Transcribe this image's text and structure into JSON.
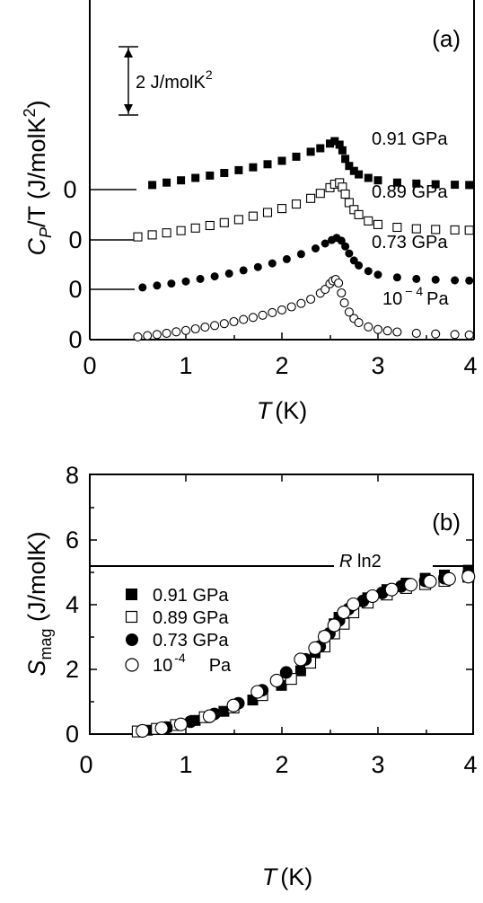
{
  "chart_data": [
    {
      "panel": "(a)",
      "type": "scatter",
      "xlabel": "T (K)",
      "xlabel_italic": "T",
      "xlabel_unit": "(K)",
      "ylabel_main": "C",
      "ylabel_sub": "P",
      "ylabel_rest": "/T (J/molK",
      "ylabel_sup": "2",
      "ylabel_close": ")",
      "xlim": [
        0,
        4
      ],
      "x_ticks": [
        "0",
        "1",
        "2",
        "3",
        "4"
      ],
      "offset_zero_labels": [
        "0",
        "0",
        "0",
        "0"
      ],
      "scale_bar": {
        "label": "2 J/molK",
        "label_sup": "2",
        "value": 2
      },
      "series": [
        {
          "name": "0.91 GPa",
          "label_text": "0.91 GPa",
          "marker": "filled-square",
          "zero_offset": 6,
          "x": [
            0.65,
            0.8,
            0.95,
            1.1,
            1.25,
            1.4,
            1.55,
            1.7,
            1.85,
            2.0,
            2.15,
            2.3,
            2.4,
            2.5,
            2.55,
            2.6,
            2.63,
            2.66,
            2.7,
            2.75,
            2.8,
            2.9,
            3.0,
            3.2,
            3.4,
            3.6,
            3.8,
            3.95
          ],
          "y": [
            0.45,
            0.62,
            0.78,
            0.95,
            1.12,
            1.3,
            1.5,
            1.7,
            1.92,
            2.16,
            2.45,
            2.8,
            3.05,
            3.38,
            3.55,
            3.3,
            2.9,
            2.3,
            1.8,
            1.45,
            1.2,
            0.95,
            0.78,
            0.62,
            0.55,
            0.5,
            0.47,
            0.45
          ]
        },
        {
          "name": "0.89 GPa",
          "label_text": "0.89 GPa",
          "marker": "open-square",
          "zero_offset": 4,
          "x": [
            0.5,
            0.65,
            0.8,
            0.95,
            1.1,
            1.25,
            1.4,
            1.55,
            1.7,
            1.85,
            2.0,
            2.15,
            2.3,
            2.4,
            2.5,
            2.55,
            2.6,
            2.63,
            2.66,
            2.7,
            2.75,
            2.8,
            2.9,
            3.0,
            3.2,
            3.4,
            3.6,
            3.8,
            3.95
          ],
          "y": [
            0.28,
            0.42,
            0.56,
            0.72,
            0.9,
            1.08,
            1.28,
            1.5,
            1.74,
            2.0,
            2.28,
            2.6,
            3.0,
            3.35,
            3.75,
            4.0,
            4.1,
            3.8,
            3.3,
            2.7,
            2.2,
            1.85,
            1.4,
            1.15,
            0.95,
            0.85,
            0.8,
            0.77,
            0.75
          ]
        },
        {
          "name": "0.73 GPa",
          "label_text": "0.73 GPa",
          "marker": "filled-circle",
          "zero_offset": 2,
          "x": [
            0.55,
            0.7,
            0.85,
            1.0,
            1.15,
            1.3,
            1.45,
            1.6,
            1.75,
            1.9,
            2.05,
            2.2,
            2.35,
            2.45,
            2.52,
            2.57,
            2.62,
            2.66,
            2.7,
            2.75,
            2.8,
            2.9,
            3.0,
            3.2,
            3.4,
            3.6,
            3.8,
            3.95
          ],
          "y": [
            0.2,
            0.33,
            0.47,
            0.62,
            0.8,
            0.98,
            1.18,
            1.4,
            1.64,
            1.9,
            2.2,
            2.55,
            2.95,
            3.3,
            3.55,
            3.7,
            3.5,
            3.1,
            2.6,
            2.1,
            1.75,
            1.35,
            1.1,
            0.9,
            0.8,
            0.74,
            0.7,
            0.68
          ]
        },
        {
          "name": "10^-4 Pa",
          "label_text": "10",
          "label_sup": "− 4",
          "label_tail": "Pa",
          "marker": "open-circle",
          "zero_offset": 0,
          "x": [
            0.5,
            0.6,
            0.7,
            0.8,
            0.9,
            1.0,
            1.1,
            1.2,
            1.3,
            1.4,
            1.5,
            1.6,
            1.7,
            1.8,
            1.9,
            2.0,
            2.1,
            2.2,
            2.3,
            2.4,
            2.45,
            2.5,
            2.53,
            2.56,
            2.59,
            2.62,
            2.65,
            2.7,
            2.75,
            2.8,
            2.9,
            3.0,
            3.1,
            3.2,
            3.4,
            3.6,
            3.8,
            3.95
          ],
          "y": [
            0.2,
            0.28,
            0.36,
            0.45,
            0.55,
            0.65,
            0.76,
            0.88,
            1.0,
            1.13,
            1.27,
            1.42,
            1.57,
            1.73,
            1.91,
            2.1,
            2.32,
            2.56,
            2.86,
            3.28,
            3.55,
            3.95,
            4.15,
            4.25,
            4.0,
            3.3,
            2.6,
            1.95,
            1.5,
            1.2,
            0.9,
            0.72,
            0.62,
            0.54,
            0.45,
            0.4,
            0.36,
            0.33
          ]
        }
      ]
    },
    {
      "panel": "(b)",
      "type": "scatter",
      "xlabel_italic": "T",
      "xlabel_unit": "(K)",
      "ylabel_main": "S",
      "ylabel_sub": "mag",
      "ylabel_rest": " (J/molK)",
      "xlim": [
        0,
        4
      ],
      "ylim": [
        0,
        8
      ],
      "x_ticks": [
        "0",
        "1",
        "2",
        "3",
        "4"
      ],
      "y_ticks": [
        "0",
        "2",
        "4",
        "6",
        "8"
      ],
      "reference_line": {
        "italic": "R",
        "text": " ln2",
        "value": 5.76
      },
      "series": [
        {
          "name": "0.91 GPa",
          "legend_text": "0.91 GPa",
          "marker": "filled-square",
          "x": [
            0.6,
            0.8,
            1.1,
            1.4,
            1.7,
            2.0,
            2.2,
            2.35,
            2.45,
            2.55,
            2.6,
            2.65,
            2.75,
            2.9,
            3.1,
            3.3,
            3.5,
            3.7,
            3.95
          ],
          "y": [
            0.12,
            0.22,
            0.42,
            0.7,
            1.05,
            1.5,
            1.95,
            2.5,
            3.0,
            3.4,
            3.6,
            3.7,
            3.95,
            4.2,
            4.45,
            4.65,
            4.8,
            4.9,
            5.05
          ]
        },
        {
          "name": "0.89 GPa",
          "legend_text": "0.89 GPa",
          "marker": "open-square",
          "x": [
            0.5,
            0.7,
            0.9,
            1.2,
            1.5,
            1.8,
            2.1,
            2.3,
            2.45,
            2.55,
            2.65,
            2.75,
            2.9,
            3.1,
            3.3,
            3.5,
            3.7,
            3.95
          ],
          "y": [
            0.08,
            0.16,
            0.28,
            0.52,
            0.82,
            1.2,
            1.7,
            2.2,
            2.7,
            3.1,
            3.4,
            3.75,
            4.05,
            4.3,
            4.5,
            4.62,
            4.72,
            4.85
          ]
        },
        {
          "name": "0.73 GPa",
          "legend_text": "0.73 GPa",
          "marker": "filled-circle",
          "x": [
            0.55,
            0.8,
            1.05,
            1.3,
            1.55,
            1.8,
            2.05,
            2.25,
            2.4,
            2.5,
            2.6,
            2.7,
            2.85,
            3.05,
            3.25,
            3.5,
            3.7,
            3.95
          ],
          "y": [
            0.1,
            0.2,
            0.38,
            0.62,
            0.95,
            1.35,
            1.9,
            2.3,
            2.7,
            3.1,
            3.5,
            3.85,
            4.1,
            4.35,
            4.55,
            4.72,
            4.8,
            4.9
          ]
        },
        {
          "name": "10^-4 Pa",
          "legend_text": "10",
          "legend_sup": "-4",
          "legend_tail": "Pa",
          "marker": "open-circle",
          "x": [
            0.55,
            0.75,
            0.95,
            1.25,
            1.5,
            1.75,
            1.95,
            2.2,
            2.35,
            2.45,
            2.55,
            2.65,
            2.75,
            2.95,
            3.15,
            3.35,
            3.55,
            3.75,
            3.95
          ],
          "y": [
            0.1,
            0.18,
            0.3,
            0.55,
            0.88,
            1.3,
            1.65,
            2.3,
            2.65,
            3.0,
            3.35,
            3.75,
            4.0,
            4.25,
            4.45,
            4.6,
            4.7,
            4.78,
            4.85
          ]
        }
      ]
    }
  ]
}
